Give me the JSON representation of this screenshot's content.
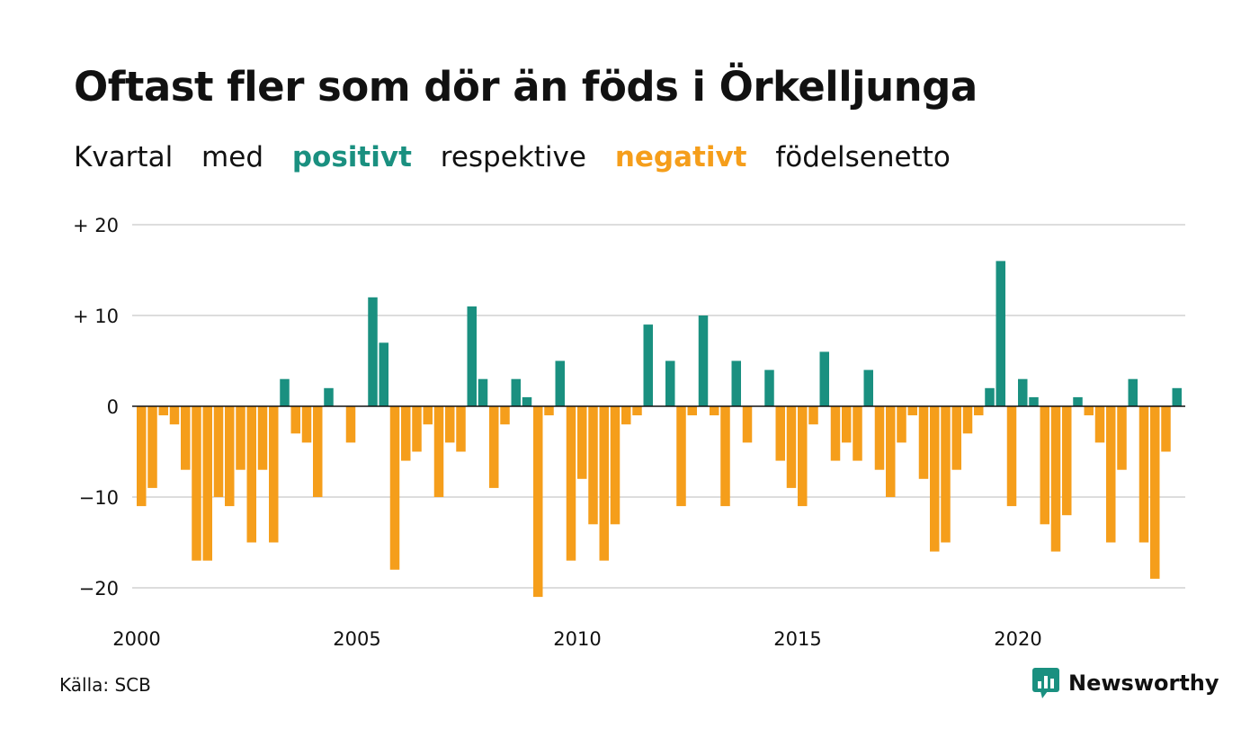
{
  "title": "Oftast fler som dör än föds i Örkelljunga",
  "subtitle": {
    "part1": "Kvartal",
    "part2": "med",
    "positive_word": "positivt",
    "part3": "respektive",
    "negative_word": "negativt",
    "part4": "födelsenetto"
  },
  "source": "Källa: SCB",
  "brand": {
    "name": "Newsworthy",
    "icon": "newsworthy-logo-icon"
  },
  "colors": {
    "positive": "#1a9080",
    "negative": "#f59e1b",
    "grid": "#dddddd",
    "axis": "#111111"
  },
  "chart_data": {
    "type": "bar",
    "x_start": "2000 Q1",
    "frequency": "quarter",
    "x_ticks": [
      "2000",
      "2005",
      "2010",
      "2015",
      "2020"
    ],
    "y_ticks": [
      "+ 20",
      "+ 10",
      "0",
      "−10",
      "−20"
    ],
    "y_tick_values": [
      20,
      10,
      0,
      -10,
      -20
    ],
    "ylim": [
      -22,
      21
    ],
    "grid": true,
    "values": [
      -11,
      -9,
      -1,
      -2,
      -7,
      -17,
      -17,
      -10,
      -11,
      -7,
      -15,
      -7,
      -15,
      3,
      -3,
      -4,
      -10,
      2,
      0,
      -4,
      0,
      12,
      7,
      -18,
      -6,
      -5,
      -2,
      -10,
      -4,
      -5,
      11,
      3,
      -9,
      -2,
      3,
      1,
      -21,
      -1,
      5,
      -17,
      -8,
      -13,
      -17,
      -13,
      -2,
      -1,
      9,
      0,
      5,
      -11,
      -1,
      10,
      -1,
      -11,
      5,
      -4,
      0,
      4,
      -6,
      -9,
      -11,
      -2,
      6,
      -6,
      -4,
      -6,
      4,
      -7,
      -10,
      -4,
      -1,
      -8,
      -16,
      -15,
      -7,
      -3,
      -1,
      2,
      16,
      -11,
      3,
      1,
      -13,
      -16,
      -12,
      1,
      -1,
      -4,
      -15,
      -7,
      3,
      -15,
      -19,
      -5,
      2
    ]
  }
}
